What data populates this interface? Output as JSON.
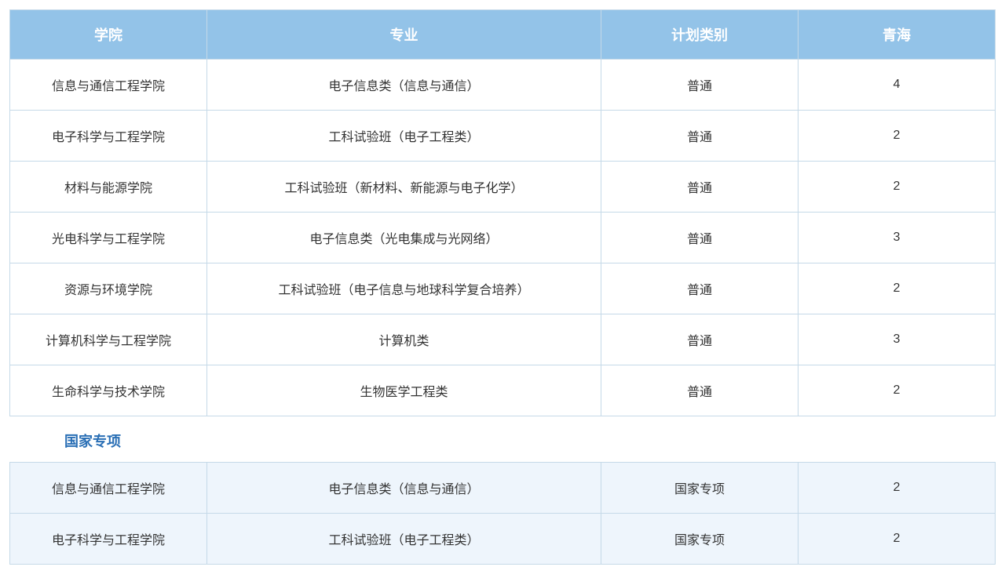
{
  "table": {
    "type": "table",
    "header_bg": "#93c3e8",
    "header_fg": "#ffffff",
    "border_color": "#c5d9e8",
    "row_bg": "#ffffff",
    "section2_row_bg": "#eef5fc",
    "section_label_color": "#2a6fb5",
    "font_family": "Microsoft YaHei",
    "header_fontsize": 18,
    "cell_fontsize": 16,
    "columns": [
      {
        "key": "college",
        "label": "学院",
        "width": "20%"
      },
      {
        "key": "major",
        "label": "专业",
        "width": "40%"
      },
      {
        "key": "plan_type",
        "label": "计划类别",
        "width": "20%"
      },
      {
        "key": "qinghai",
        "label": "青海",
        "width": "20%"
      }
    ],
    "rows": [
      {
        "college": "信息与通信工程学院",
        "major": "电子信息类（信息与通信）",
        "plan_type": "普通",
        "qinghai": "4"
      },
      {
        "college": "电子科学与工程学院",
        "major": "工科试验班（电子工程类）",
        "plan_type": "普通",
        "qinghai": "2"
      },
      {
        "college": "材料与能源学院",
        "major": "工科试验班（新材料、新能源与电子化学）",
        "plan_type": "普通",
        "qinghai": "2"
      },
      {
        "college": "光电科学与工程学院",
        "major": "电子信息类（光电集成与光网络）",
        "plan_type": "普通",
        "qinghai": "3"
      },
      {
        "college": "资源与环境学院",
        "major": "工科试验班（电子信息与地球科学复合培养）",
        "plan_type": "普通",
        "qinghai": "2"
      },
      {
        "college": "计算机科学与工程学院",
        "major": "计算机类",
        "plan_type": "普通",
        "qinghai": "3"
      },
      {
        "college": "生命科学与技术学院",
        "major": "生物医学工程类",
        "plan_type": "普通",
        "qinghai": "2"
      }
    ],
    "section_label": "国家专项",
    "rows2": [
      {
        "college": "信息与通信工程学院",
        "major": "电子信息类（信息与通信）",
        "plan_type": "国家专项",
        "qinghai": "2"
      },
      {
        "college": "电子科学与工程学院",
        "major": "工科试验班（电子工程类）",
        "plan_type": "国家专项",
        "qinghai": "2"
      }
    ]
  }
}
